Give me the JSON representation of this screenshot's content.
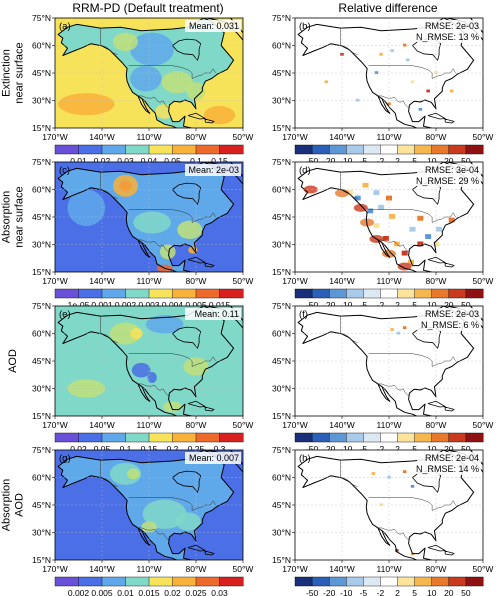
{
  "column_titles": [
    "RRM-PD (Default treatment)",
    "Relative difference"
  ],
  "row_labels": [
    [
      "Extinction",
      "near surface"
    ],
    [
      "Absorption",
      "near surface"
    ],
    [
      "AOD"
    ],
    [
      "Absorption",
      "AOD"
    ]
  ],
  "panels": [
    {
      "label": "(a)",
      "stat_lines": [
        "Mean: 0.031"
      ],
      "kind": "field",
      "colorbar_ticks": [
        "0.01",
        "0.02",
        "0.03",
        "0.04",
        "0.05",
        "0.1",
        "0.15"
      ]
    },
    {
      "label": "(b)",
      "stat_lines": [
        "RMSE: 2e-03",
        "N_RMSE: 13 %"
      ],
      "kind": "diff",
      "colorbar_ticks": [
        "-50",
        "-20",
        "-10",
        "-5",
        "-2",
        "2",
        "5",
        "10",
        "20",
        "50"
      ]
    },
    {
      "label": "(c)",
      "stat_lines": [
        "Mean: 2e-03"
      ],
      "kind": "field",
      "colorbar_ticks": [
        "1e-05",
        "0.001",
        "0.002",
        "0.003",
        "0.004",
        "0.005",
        "0.015"
      ]
    },
    {
      "label": "(d)",
      "stat_lines": [
        "RMSE: 3e-04",
        "N_RMSE: 29 %"
      ],
      "kind": "diff",
      "colorbar_ticks": [
        "-50",
        "-20",
        "-10",
        "-5",
        "-2",
        "2",
        "5",
        "10",
        "20",
        "50"
      ]
    },
    {
      "label": "(e)",
      "stat_lines": [
        "Mean: 0.11"
      ],
      "kind": "field",
      "colorbar_ticks": [
        "0.02",
        "0.05",
        "0.1",
        "0.15",
        "0.2",
        "0.25",
        "0.3"
      ]
    },
    {
      "label": "(f)",
      "stat_lines": [
        "RMSE: 2e-03",
        "N_RMSE: 6 %"
      ],
      "kind": "diff",
      "colorbar_ticks": [
        "-50",
        "-20",
        "-10",
        "-5",
        "-2",
        "2",
        "5",
        "10",
        "20",
        "50"
      ]
    },
    {
      "label": "(g)",
      "stat_lines": [
        "Mean: 0.007"
      ],
      "kind": "field",
      "colorbar_ticks": [
        "0.002",
        "0.005",
        "0.01",
        "0.015",
        "0.02",
        "0.025",
        "0.03"
      ]
    },
    {
      "label": "(h)",
      "stat_lines": [
        "RMSE: 2e-04",
        "N_RMSE: 14 %"
      ],
      "kind": "diff",
      "colorbar_ticks": [
        "-50",
        "-20",
        "-10",
        "-5",
        "-2",
        "2",
        "5",
        "10",
        "20",
        "50"
      ]
    }
  ],
  "lat_ticks": [
    "75°N",
    "60°N",
    "45°N",
    "30°N",
    "15°N"
  ],
  "lon_ticks": [
    "170°W",
    "140°W",
    "110°W",
    "80°W",
    "50°W"
  ],
  "colors": {
    "field_scale": [
      "#6a4fd8",
      "#4a6fe6",
      "#5fa8ea",
      "#7fd8c8",
      "#bfe07a",
      "#f7e35a",
      "#f8b23a",
      "#ee6a2a",
      "#d92020"
    ],
    "diff_scale": [
      "#1a2f7a",
      "#2c5fb8",
      "#5d97d6",
      "#a8cbea",
      "#dce9f5",
      "#ffffff",
      "#fbe39a",
      "#f6b84e",
      "#e8782c",
      "#c93a1e",
      "#8e1212"
    ]
  },
  "chart_data": [
    {
      "type": "heatmap",
      "panel": "a",
      "title": "",
      "variable": "Extinction near surface",
      "mean": "0.031",
      "xlim": [
        -170,
        -50
      ],
      "ylim": [
        15,
        75
      ],
      "colorbar_levels": [
        0.01,
        0.02,
        0.03,
        0.04,
        0.05,
        0.1,
        0.15
      ]
    },
    {
      "type": "heatmap",
      "panel": "b",
      "variable": "Extinction near surface relative difference (%)",
      "rmse": "2e-03",
      "n_rmse": "13 %",
      "xlim": [
        -170,
        -50
      ],
      "ylim": [
        15,
        75
      ],
      "colorbar_levels": [
        -50,
        -20,
        -10,
        -5,
        -2,
        2,
        5,
        10,
        20,
        50
      ]
    },
    {
      "type": "heatmap",
      "panel": "c",
      "variable": "Absorption near surface",
      "mean": "2e-03",
      "xlim": [
        -170,
        -50
      ],
      "ylim": [
        15,
        75
      ],
      "colorbar_levels": [
        1e-05,
        0.001,
        0.002,
        0.003,
        0.004,
        0.005,
        0.015
      ]
    },
    {
      "type": "heatmap",
      "panel": "d",
      "variable": "Absorption near surface relative difference (%)",
      "rmse": "3e-04",
      "n_rmse": "29 %",
      "xlim": [
        -170,
        -50
      ],
      "ylim": [
        15,
        75
      ],
      "colorbar_levels": [
        -50,
        -20,
        -10,
        -5,
        -2,
        2,
        5,
        10,
        20,
        50
      ]
    },
    {
      "type": "heatmap",
      "panel": "e",
      "variable": "AOD",
      "mean": "0.11",
      "xlim": [
        -170,
        -50
      ],
      "ylim": [
        15,
        75
      ],
      "colorbar_levels": [
        0.02,
        0.05,
        0.1,
        0.15,
        0.2,
        0.25,
        0.3
      ]
    },
    {
      "type": "heatmap",
      "panel": "f",
      "variable": "AOD relative difference (%)",
      "rmse": "2e-03",
      "n_rmse": "6 %",
      "xlim": [
        -170,
        -50
      ],
      "ylim": [
        15,
        75
      ],
      "colorbar_levels": [
        -50,
        -20,
        -10,
        -5,
        -2,
        2,
        5,
        10,
        20,
        50
      ]
    },
    {
      "type": "heatmap",
      "panel": "g",
      "variable": "Absorption AOD",
      "mean": "0.007",
      "xlim": [
        -170,
        -50
      ],
      "ylim": [
        15,
        75
      ],
      "colorbar_levels": [
        0.002,
        0.005,
        0.01,
        0.015,
        0.02,
        0.025,
        0.03
      ]
    },
    {
      "type": "heatmap",
      "panel": "h",
      "variable": "Absorption AOD relative difference (%)",
      "rmse": "2e-04",
      "n_rmse": "14 %",
      "xlim": [
        -170,
        -50
      ],
      "ylim": [
        15,
        75
      ],
      "colorbar_levels": [
        -50,
        -20,
        -10,
        -5,
        -2,
        2,
        5,
        10,
        20,
        50
      ]
    }
  ]
}
